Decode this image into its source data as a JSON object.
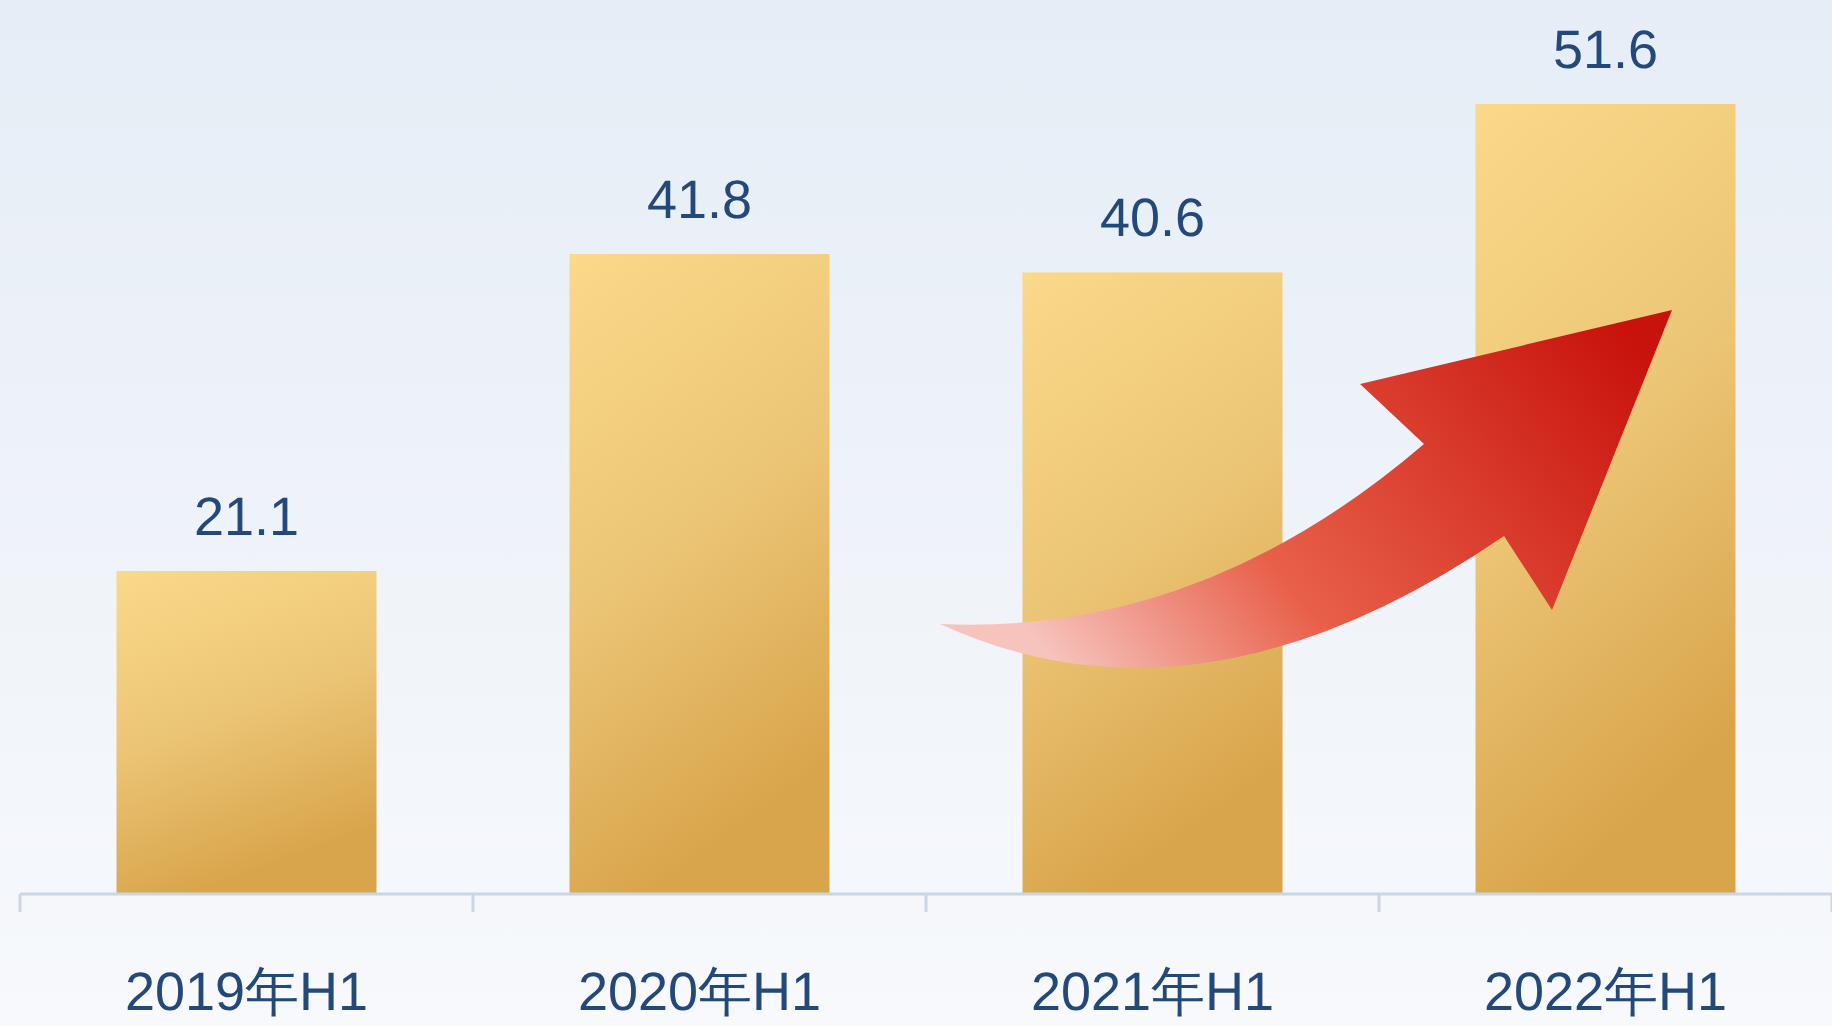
{
  "chart_data": {
    "type": "bar",
    "categories": [
      "2019年H1",
      "2020年H1",
      "2021年H1",
      "2022年H1"
    ],
    "values": [
      21.1,
      41.8,
      40.6,
      51.6
    ],
    "color": "#ecc677",
    "data_labels": true
  }
}
